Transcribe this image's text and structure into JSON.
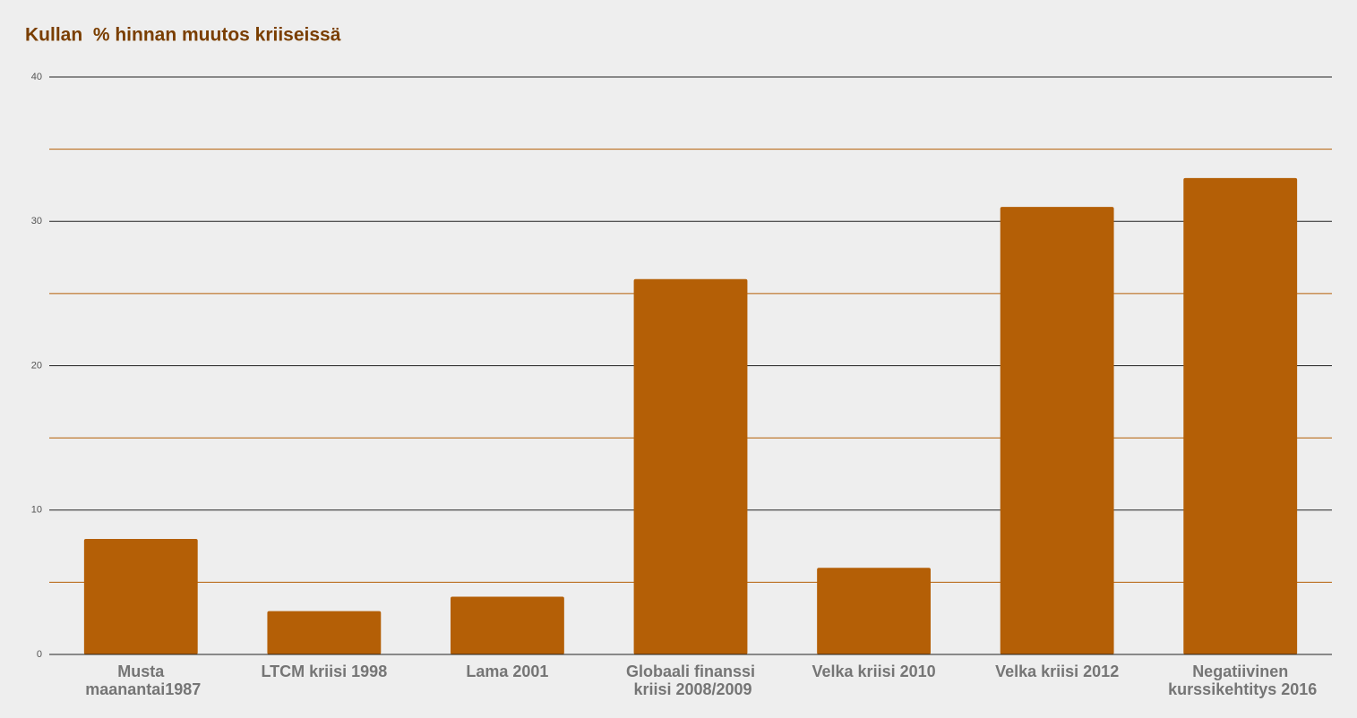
{
  "chart_data": {
    "type": "bar",
    "title": "Kullan  % hinnan muutos kriiseissä",
    "categories": [
      "Musta maanantai1987",
      "LTCM kriisi 1998",
      "Lama 2001",
      "Globaali finanssi kriisi 2008/2009",
      "Velka kriisi 2010",
      "Velka kriisi 2012",
      "Negatiivinen kurssikehtitys 2016"
    ],
    "values": [
      8,
      3,
      4,
      26,
      6,
      31,
      33
    ],
    "color": "#b45f06",
    "ylim": [
      0,
      40
    ],
    "yticks": [
      0,
      10,
      20,
      30,
      40
    ],
    "minor_gridlines": [
      5,
      15,
      25,
      35
    ],
    "grid": true
  }
}
